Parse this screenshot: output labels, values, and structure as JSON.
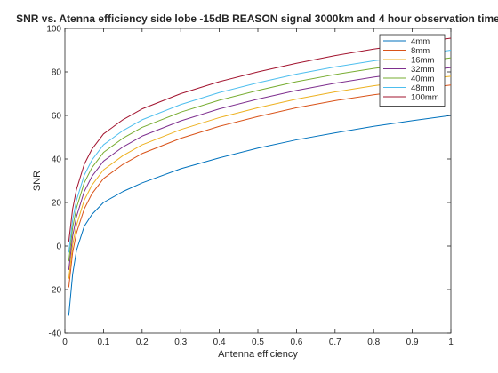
{
  "chart_data": {
    "type": "line",
    "title": "SNR vs. Atenna efficiency side lobe -15dB REASON signal 3000km and 4 hour observation time",
    "xlabel": "Antenna efficiency",
    "ylabel": "SNR",
    "xlim": [
      0,
      1
    ],
    "ylim": [
      -40,
      100
    ],
    "xticks": [
      0,
      0.1,
      0.2,
      0.3,
      0.4,
      0.5,
      0.6,
      0.7,
      0.8,
      0.9,
      1
    ],
    "xtick_labels": [
      "0",
      "0.1",
      "0.2",
      "0.3",
      "0.4",
      "0.5",
      "0.6",
      "0.7",
      "0.8",
      "0.9",
      "1"
    ],
    "yticks": [
      -40,
      -20,
      0,
      20,
      40,
      60,
      80,
      100
    ],
    "ytick_labels": [
      "-40",
      "-20",
      "0",
      "20",
      "40",
      "60",
      "80",
      "100"
    ],
    "grid": false,
    "legend_position": "top-right",
    "x": [
      0.01,
      0.02,
      0.03,
      0.05,
      0.07,
      0.1,
      0.15,
      0.2,
      0.3,
      0.4,
      0.5,
      0.6,
      0.7,
      0.8,
      0.9,
      1.0
    ],
    "series": [
      {
        "name": "4mm",
        "color": "#0072BD",
        "values": [
          -32.0,
          -13.0,
          -2.0,
          9.0,
          14.5,
          20.0,
          25.0,
          29.0,
          35.5,
          40.5,
          45.0,
          48.8,
          52.0,
          55.0,
          57.6,
          60.0
        ]
      },
      {
        "name": "8mm",
        "color": "#D95319",
        "values": [
          -19.0,
          -3.0,
          6.0,
          17.0,
          24.0,
          31.0,
          37.5,
          42.5,
          49.5,
          55.0,
          59.5,
          63.5,
          66.8,
          69.5,
          71.8,
          74.0
        ]
      },
      {
        "name": "16mm",
        "color": "#EDB120",
        "values": [
          -15.0,
          0.5,
          9.5,
          21.0,
          28.0,
          35.0,
          41.5,
          46.5,
          53.5,
          59.0,
          63.5,
          67.5,
          70.8,
          73.6,
          76.0,
          78.0
        ]
      },
      {
        "name": "32mm",
        "color": "#7E2F8E",
        "values": [
          -11.0,
          4.5,
          13.5,
          25.0,
          32.0,
          39.0,
          45.5,
          50.5,
          57.5,
          63.0,
          67.5,
          71.5,
          74.8,
          77.6,
          80.0,
          82.0
        ]
      },
      {
        "name": "40mm",
        "color": "#77AC30",
        "values": [
          -7.0,
          8.5,
          17.5,
          29.0,
          36.0,
          43.0,
          49.5,
          54.5,
          61.5,
          67.0,
          71.5,
          75.5,
          78.8,
          81.6,
          84.0,
          86.5
        ]
      },
      {
        "name": "48mm",
        "color": "#4DBEEE",
        "values": [
          -3.0,
          12.0,
          21.0,
          32.5,
          39.5,
          46.5,
          53.0,
          58.0,
          65.0,
          70.5,
          75.0,
          79.0,
          82.3,
          85.1,
          87.5,
          90.0
        ]
      },
      {
        "name": "100mm",
        "color": "#A2142F",
        "values": [
          2.0,
          17.0,
          26.0,
          37.5,
          44.5,
          51.5,
          58.0,
          63.0,
          70.0,
          75.5,
          80.0,
          84.0,
          87.5,
          90.5,
          93.0,
          95.5
        ]
      }
    ]
  }
}
